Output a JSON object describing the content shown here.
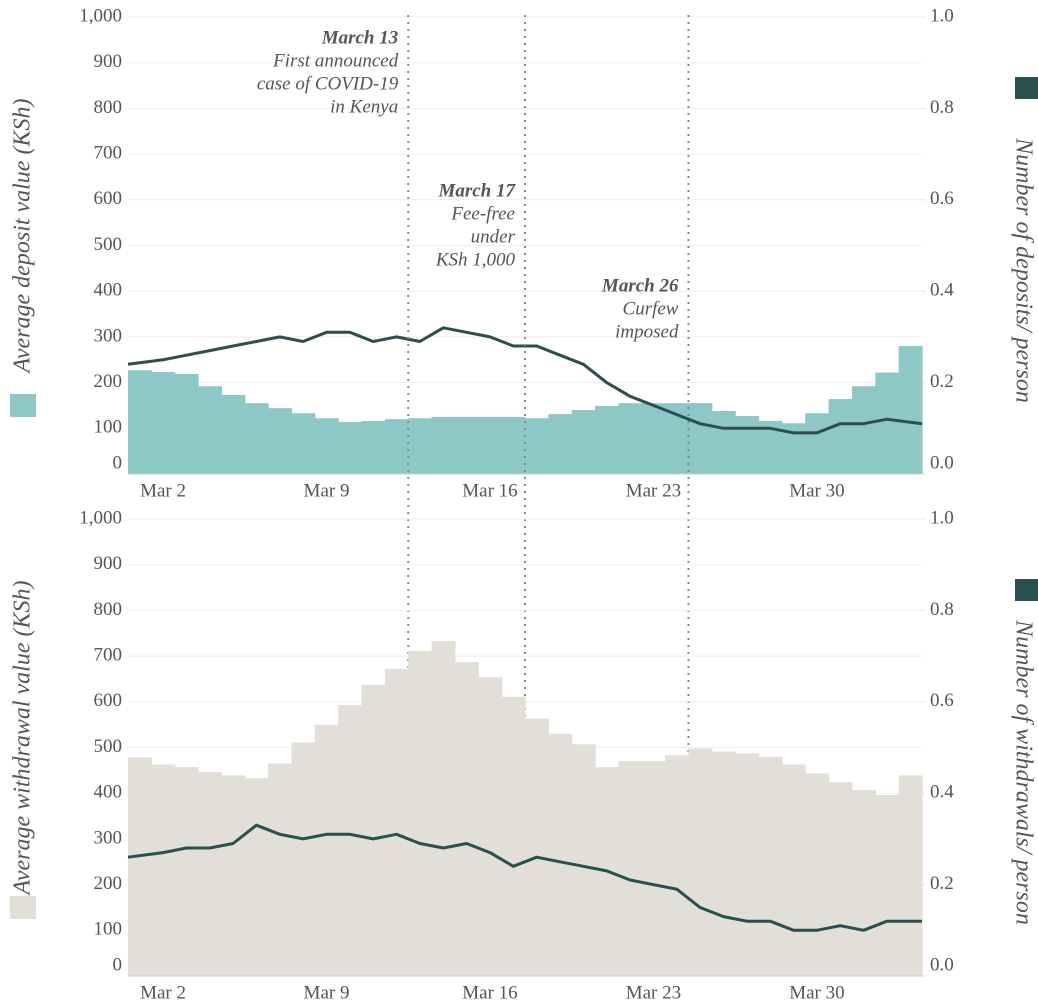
{
  "chart_data": [
    {
      "type": "bar-line",
      "ylabel": "Average deposit value (KSh)",
      "y2label": "Number of deposits/ person",
      "categories": [
        null,
        "Mar 2",
        null,
        null,
        null,
        null,
        null,
        null,
        "Mar 9",
        null,
        null,
        null,
        null,
        null,
        null,
        "Mar 16",
        null,
        null,
        null,
        null,
        null,
        null,
        "Mar 23",
        null,
        null,
        null,
        null,
        null,
        null,
        "Mar 30",
        null,
        null,
        null,
        null
      ],
      "series": [
        {
          "color": "#8dc8c6",
          "values": [
            227,
            223,
            219,
            192,
            173,
            155,
            144,
            133,
            122,
            114,
            116,
            120,
            122,
            125,
            125,
            125,
            125,
            122,
            131,
            140,
            149,
            155,
            155,
            155,
            155,
            138,
            127,
            116,
            111,
            133,
            164,
            192,
            222,
            280
          ]
        },
        {
          "color": "#2b4f4e",
          "axis": "y2",
          "values": [
            0.24,
            0.25,
            0.26,
            0.27,
            0.28,
            0.29,
            0.3,
            0.29,
            0.31,
            0.31,
            0.29,
            0.3,
            0.29,
            0.32,
            0.31,
            0.3,
            0.28,
            0.28,
            0.26,
            0.24,
            0.2,
            0.17,
            0.15,
            0.13,
            0.11,
            0.1,
            0.1,
            0.1,
            0.09,
            0.09,
            0.11,
            0.11,
            0.12,
            0.11
          ]
        }
      ],
      "ylim": [
        0,
        1000
      ],
      "yticks": [
        0,
        100,
        200,
        300,
        400,
        500,
        600,
        700,
        800,
        900,
        {
          "value": 1000,
          "label": "1,000"
        }
      ],
      "y2lim": [
        0,
        1
      ],
      "y2ticks": [
        {
          "value": 0,
          "label": "0.0"
        },
        0.2,
        0.4,
        0.6,
        0.8,
        {
          "value": 1,
          "label": "1.0"
        }
      ],
      "grid": true,
      "annotations": [
        {
          "x": 12,
          "head": "March 13",
          "text": [
            "First announced",
            "case of COVID-19",
            "in Kenya"
          ]
        },
        {
          "x": 17,
          "head": "March 17",
          "text": [
            "Fee-free",
            "under",
            "KSh 1,000"
          ]
        },
        {
          "x": 24,
          "head": "March 26",
          "text": [
            "Curfew",
            "imposed"
          ]
        }
      ]
    },
    {
      "type": "bar-line",
      "ylabel": "Average withdrawal value (KSh)",
      "y2label": "Number of withdrawals/ person",
      "categories": [
        null,
        "Mar 2",
        null,
        null,
        null,
        null,
        null,
        null,
        "Mar 9",
        null,
        null,
        null,
        null,
        null,
        null,
        "Mar 16",
        null,
        null,
        null,
        null,
        null,
        null,
        "Mar 23",
        null,
        null,
        null,
        null,
        null,
        null,
        "Mar 30",
        null,
        null,
        null,
        null
      ],
      "series": [
        {
          "color": "#e2ded8",
          "values": [
            478,
            463,
            457,
            446,
            439,
            433,
            465,
            511,
            550,
            593,
            637,
            672,
            711,
            733,
            687,
            654,
            611,
            563,
            530,
            507,
            457,
            470,
            470,
            483,
            498,
            491,
            487,
            480,
            463,
            443,
            424,
            407,
            396,
            439
          ]
        },
        {
          "color": "#2b4f4e",
          "axis": "y2",
          "values": [
            0.26,
            0.27,
            0.28,
            0.28,
            0.29,
            0.33,
            0.31,
            0.3,
            0.31,
            0.31,
            0.3,
            0.31,
            0.29,
            0.28,
            0.29,
            0.27,
            0.24,
            0.26,
            0.25,
            0.24,
            0.23,
            0.21,
            0.2,
            0.19,
            0.15,
            0.13,
            0.12,
            0.12,
            0.1,
            0.1,
            0.11,
            0.1,
            0.12,
            0.12
          ]
        }
      ],
      "ylim": [
        0,
        1000
      ],
      "yticks": [
        0,
        100,
        200,
        300,
        400,
        500,
        600,
        700,
        800,
        900,
        {
          "value": 1000,
          "label": "1,000"
        }
      ],
      "y2lim": [
        0,
        1
      ],
      "y2ticks": [
        {
          "value": 0,
          "label": "0.0"
        },
        0.2,
        0.4,
        0.6,
        0.8,
        {
          "value": 1,
          "label": "1.0"
        }
      ],
      "grid": true
    }
  ]
}
